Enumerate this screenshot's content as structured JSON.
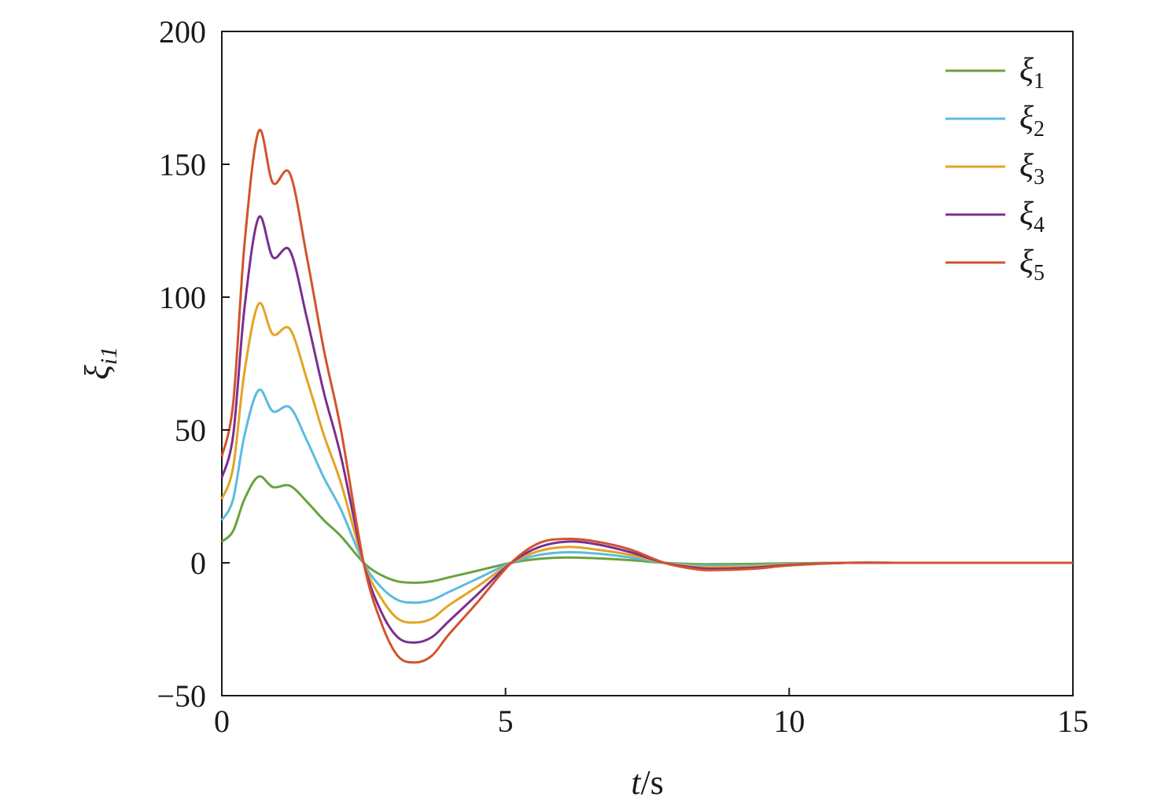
{
  "chart_data": {
    "type": "line",
    "xlabel_var": "t",
    "xlabel_unit": "/s",
    "ylabel_sym": "ξ",
    "ylabel_sub": "i1",
    "xlim": [
      0,
      15
    ],
    "ylim": [
      -50,
      200
    ],
    "xticks": [
      0,
      5,
      10,
      15
    ],
    "yticks": [
      -50,
      0,
      50,
      100,
      150,
      200
    ],
    "ytick_labels": [
      "−50",
      "0",
      "50",
      "100",
      "150",
      "200"
    ],
    "grid": false,
    "legend_position": "top-right",
    "x": [
      0,
      0.2,
      0.4,
      0.65,
      0.9,
      1.2,
      1.5,
      1.8,
      2.1,
      2.5,
      2.8,
      3.1,
      3.4,
      3.7,
      4.0,
      4.5,
      5.1,
      5.6,
      6.1,
      6.6,
      7.2,
      7.8,
      8.4,
      8.8,
      9.4,
      10.0,
      11.0,
      12.0,
      13.0,
      14.0,
      15.0
    ],
    "series": [
      {
        "name": "ξ",
        "sub": "1",
        "color": "#6aa23d",
        "values": [
          8,
          12,
          24,
          32.5,
          28.5,
          29,
          23,
          16,
          10,
          0,
          -4.5,
          -7,
          -7.5,
          -7,
          -5.5,
          -3,
          0,
          1.5,
          2,
          1.7,
          1,
          0,
          -0.5,
          -0.5,
          -0.4,
          -0.2,
          0,
          0,
          0,
          0,
          0
        ]
      },
      {
        "name": "ξ",
        "sub": "2",
        "color": "#5bbbe0",
        "values": [
          16,
          24,
          48,
          65,
          57,
          58.5,
          46,
          32,
          20,
          0,
          -9,
          -14,
          -15,
          -14,
          -11,
          -6,
          0,
          3,
          4,
          3.5,
          2,
          0,
          -1,
          -1.1,
          -0.9,
          -0.4,
          0,
          0,
          0,
          0,
          0
        ]
      },
      {
        "name": "ξ",
        "sub": "3",
        "color": "#e3a325",
        "values": [
          24,
          36,
          72,
          97.5,
          86,
          88,
          69,
          48,
          30,
          0,
          -13,
          -21,
          -22.5,
          -21,
          -16,
          -9,
          0,
          4.5,
          6,
          5,
          3,
          0,
          -1.5,
          -1.6,
          -1.3,
          -0.6,
          0,
          0,
          0,
          0,
          0
        ]
      },
      {
        "name": "ξ",
        "sub": "4",
        "color": "#7b2f92",
        "values": [
          32,
          48,
          96,
          130,
          115,
          117.5,
          92,
          64,
          40,
          0,
          -18,
          -28,
          -30,
          -28,
          -22,
          -12,
          0,
          6,
          8,
          7,
          4,
          0,
          -2,
          -2.2,
          -1.8,
          -0.8,
          0,
          0,
          0,
          0,
          0
        ]
      },
      {
        "name": "ξ",
        "sub": "5",
        "color": "#d2532d",
        "values": [
          40,
          60,
          120,
          162.5,
          143,
          146.5,
          115,
          80,
          50,
          0,
          -22,
          -35,
          -37.5,
          -35,
          -27,
          -15,
          0,
          7.5,
          9,
          8,
          5,
          0,
          -2.5,
          -2.7,
          -2.2,
          -1,
          0,
          0,
          0,
          0,
          0
        ]
      }
    ]
  }
}
